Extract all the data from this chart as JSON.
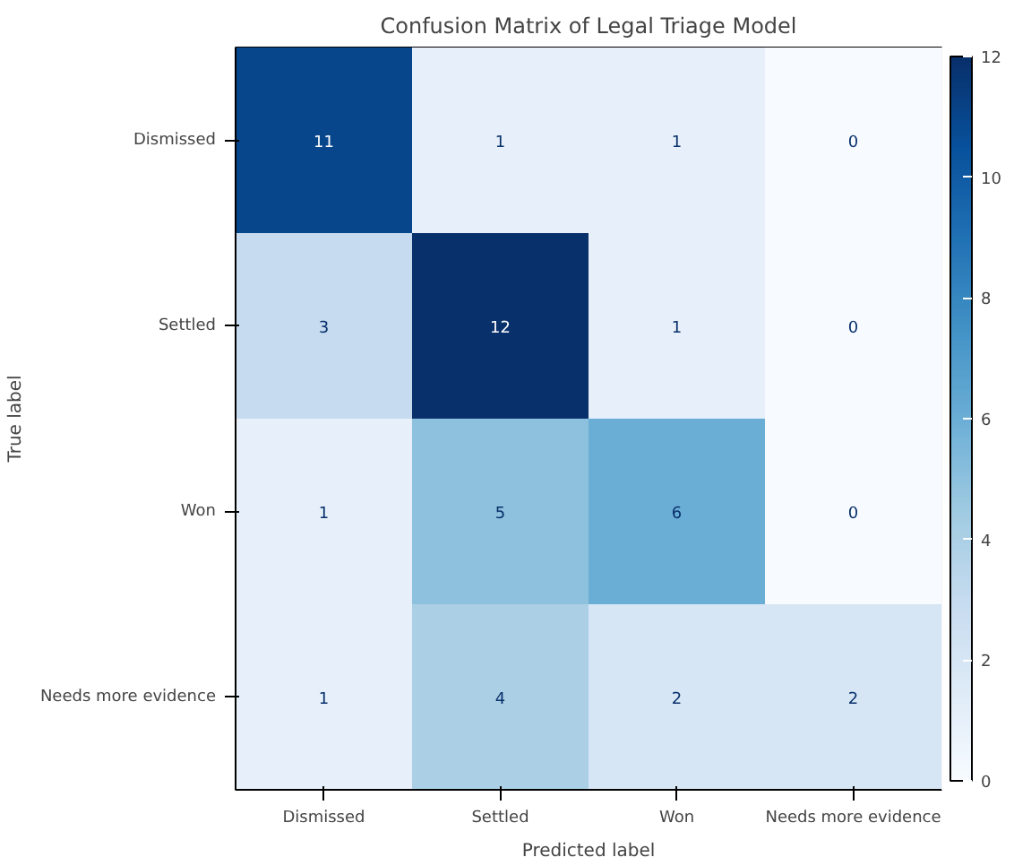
{
  "chart_data": {
    "type": "heatmap",
    "title": "Confusion Matrix of Legal Triage Model",
    "xlabel": "Predicted label",
    "ylabel": "True label",
    "categories": [
      "Dismissed",
      "Settled",
      "Won",
      "Needs more evidence"
    ],
    "y_categories": [
      "Dismissed",
      "Settled",
      "Won",
      "Needs more evidence"
    ],
    "cells": [
      [
        11,
        1,
        1,
        0
      ],
      [
        3,
        12,
        1,
        0
      ],
      [
        1,
        5,
        6,
        0
      ],
      [
        1,
        4,
        2,
        2
      ]
    ],
    "clim": [
      0,
      12
    ],
    "cticks": [
      0,
      2,
      4,
      6,
      8,
      10,
      12
    ],
    "data_labels": true
  }
}
